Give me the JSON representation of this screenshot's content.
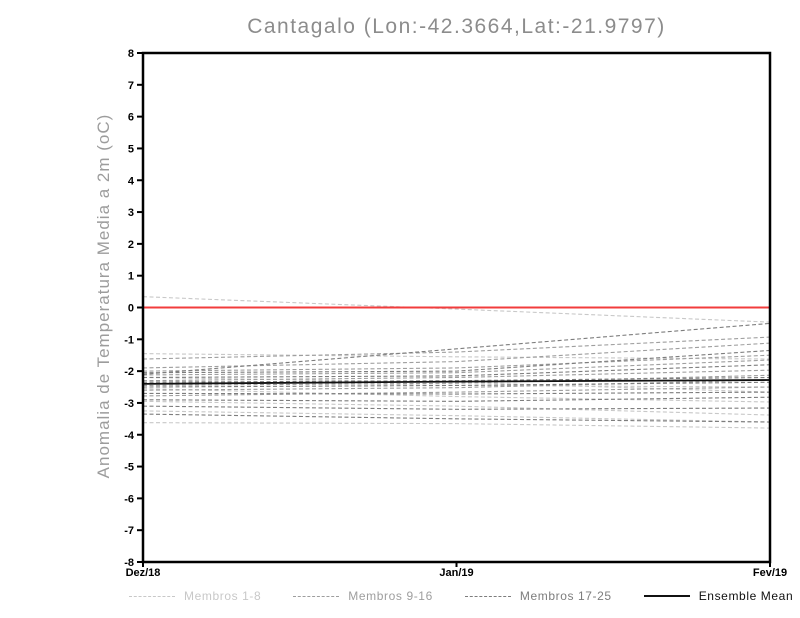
{
  "chart_data": {
    "type": "line",
    "title": "Cantagalo (Lon:-42.3664,Lat:-21.9797)",
    "ylabel": "Anomalia de Temperatura Media a 2m (oC)",
    "xlabel": "",
    "x_tick_labels": [
      "Dez/18",
      "Jan/19",
      "Fev/19"
    ],
    "ylim": [
      -8,
      8
    ],
    "y_tick_step": 1,
    "grid": false,
    "legend_position": "bottom",
    "zero_line": {
      "value": 0,
      "color": "#f23c3c"
    },
    "axis_color": "#000000",
    "groups": [
      {
        "name": "Membros 1-8",
        "color": "#c8c8c8",
        "style": "dashed",
        "members": [
          [
            0.34,
            -0.05,
            -0.46
          ],
          [
            -1.45,
            -1.55,
            -1.62
          ],
          [
            -2.2,
            -2.35,
            -2.66
          ],
          [
            -2.55,
            -2.8,
            -2.97
          ],
          [
            -2.95,
            -3.1,
            -3.38
          ],
          [
            -3.25,
            -3.4,
            -3.6
          ],
          [
            -3.62,
            -3.65,
            -3.79
          ],
          [
            -2.3,
            -2.45,
            -2.5
          ]
        ]
      },
      {
        "name": "Membros 9-16",
        "color": "#9e9e9e",
        "style": "dashed",
        "members": [
          [
            -1.62,
            -1.4,
            -0.93
          ],
          [
            -1.9,
            -1.7,
            -1.12
          ],
          [
            -2.0,
            -1.9,
            -1.5
          ],
          [
            -2.12,
            -2.05,
            -1.65
          ],
          [
            -2.3,
            -2.2,
            -1.97
          ],
          [
            -2.45,
            -2.38,
            -2.13
          ],
          [
            -2.6,
            -2.52,
            -2.28
          ],
          [
            -2.78,
            -2.66,
            -2.5
          ]
        ]
      },
      {
        "name": "Membros 17-25",
        "color": "#7d7d7d",
        "style": "dashed",
        "members": [
          [
            -2.1,
            -1.3,
            -0.5
          ],
          [
            -2.05,
            -2.0,
            -1.35
          ],
          [
            -2.2,
            -2.15,
            -1.8
          ],
          [
            -2.35,
            -2.3,
            -2.2
          ],
          [
            -2.5,
            -2.45,
            -2.35
          ],
          [
            -2.7,
            -2.72,
            -2.66
          ],
          [
            -2.9,
            -2.95,
            -2.82
          ],
          [
            -3.1,
            -3.2,
            -3.16
          ],
          [
            -3.35,
            -3.5,
            -3.6
          ]
        ]
      }
    ],
    "mean": {
      "name": "Ensemble Mean",
      "color": "#111111",
      "style": "solid",
      "values": [
        -2.4,
        -2.33,
        -2.28
      ]
    },
    "legend": [
      {
        "label": "Membros 1-8",
        "color": "#c8c8c8",
        "style": "dashed"
      },
      {
        "label": "Membros 9-16",
        "color": "#9e9e9e",
        "style": "dashed"
      },
      {
        "label": "Membros 17-25",
        "color": "#7d7d7d",
        "style": "dashed"
      },
      {
        "label": "Ensemble Mean",
        "color": "#111111",
        "style": "solid"
      }
    ]
  }
}
